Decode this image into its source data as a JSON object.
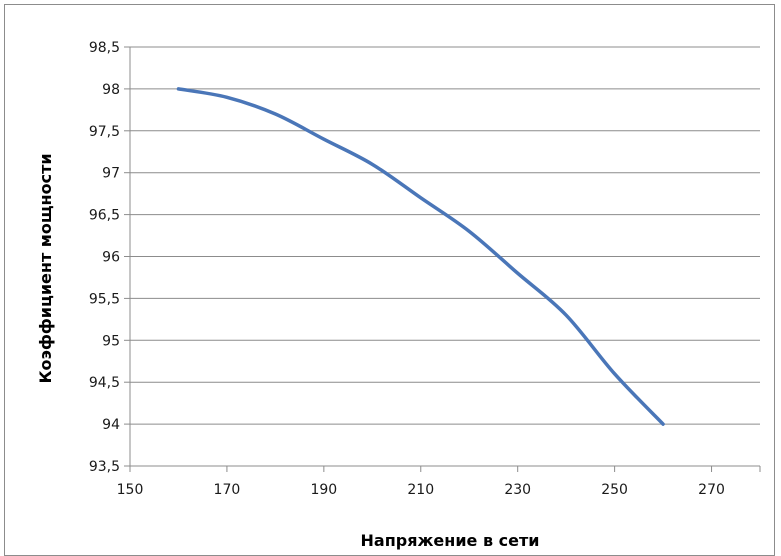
{
  "chart_data": {
    "type": "line",
    "title": "",
    "xlabel": "Напряжение в сети",
    "ylabel": "Коэффициент мощности",
    "xlim": [
      150,
      280
    ],
    "ylim": [
      93.5,
      98.5
    ],
    "x_ticks": [
      150,
      170,
      190,
      210,
      230,
      250,
      270
    ],
    "x_tick_labels": [
      "150",
      "170",
      "190",
      "210",
      "230",
      "250",
      "270"
    ],
    "y_ticks": [
      93.5,
      94,
      94.5,
      95,
      95.5,
      96,
      96.5,
      97,
      97.5,
      98,
      98.5
    ],
    "y_tick_labels": [
      "93,5",
      "94",
      "94,5",
      "95",
      "95,5",
      "96",
      "96,5",
      "97",
      "97,5",
      "98",
      "98,5"
    ],
    "grid": "horizontal",
    "series": [
      {
        "color": "#4a76b8",
        "smooth": true,
        "x": [
          160,
          170,
          180,
          190,
          200,
          210,
          220,
          230,
          240,
          250,
          260
        ],
        "y": [
          98,
          97.9,
          97.7,
          97.4,
          97.1,
          96.7,
          96.3,
          95.8,
          95.3,
          94.6,
          94
        ]
      }
    ]
  }
}
